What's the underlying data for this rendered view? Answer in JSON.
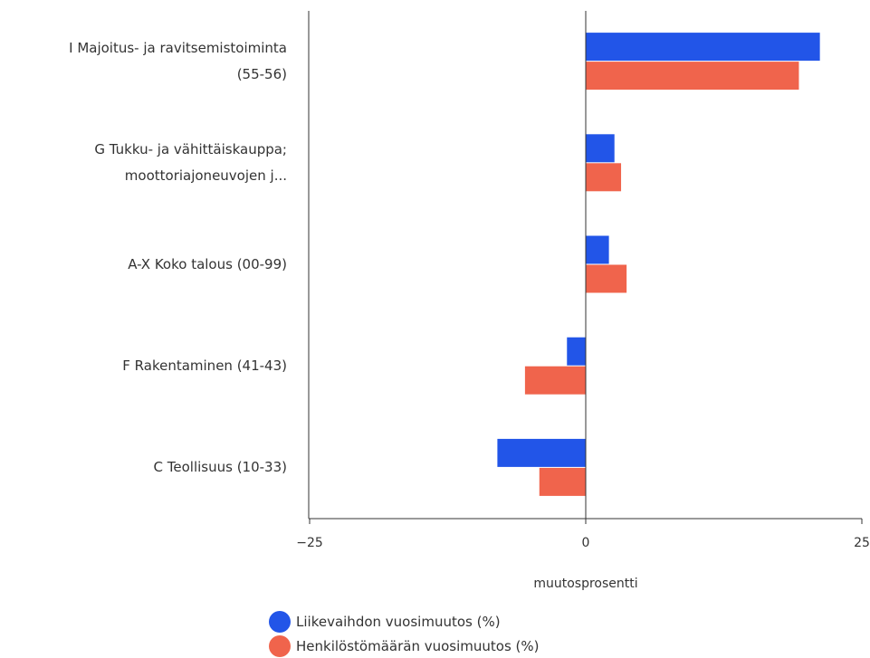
{
  "chart_data": {
    "type": "bar",
    "orientation": "horizontal",
    "categories": [
      [
        "I Majoitus- ja ravitsemistoiminta",
        "(55-56)"
      ],
      [
        "G Tukku- ja vähittäiskauppa;",
        "moottoriajoneuvojen j..."
      ],
      [
        "A-X Koko talous (00-99)"
      ],
      [
        "F Rakentaminen (41-43)"
      ],
      [
        "C Teollisuus (10-33)"
      ]
    ],
    "series": [
      {
        "name": "Liikevaihdon vuosimuutos (%)",
        "color": "#2255e8",
        "values": [
          21.2,
          2.6,
          2.1,
          -1.7,
          -8.0
        ]
      },
      {
        "name": "Henkilöstömäärän vuosimuutos (%)",
        "color": "#f0644c",
        "values": [
          19.3,
          3.2,
          3.7,
          -5.5,
          -4.2
        ]
      }
    ],
    "xlabel": "muutosprosentti",
    "xlim": [
      -25,
      25
    ],
    "xticks": [
      {
        "value": -25,
        "label": "−25"
      },
      {
        "value": 0,
        "label": "0"
      },
      {
        "value": 25,
        "label": "25"
      }
    ],
    "grid": false,
    "legend_position": "bottom"
  }
}
